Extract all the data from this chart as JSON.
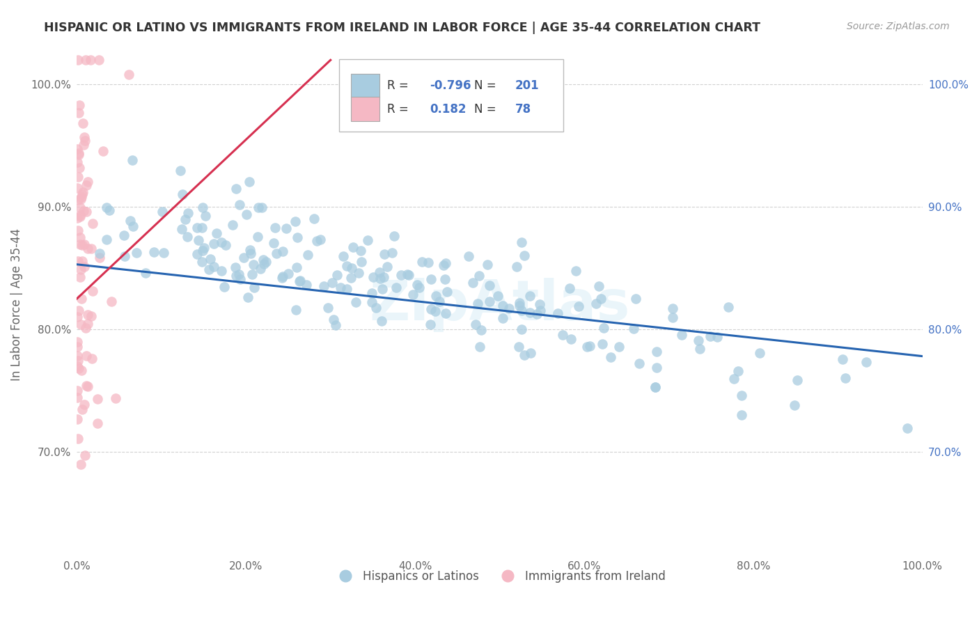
{
  "title": "HISPANIC OR LATINO VS IMMIGRANTS FROM IRELAND IN LABOR FORCE | AGE 35-44 CORRELATION CHART",
  "source": "Source: ZipAtlas.com",
  "ylabel": "In Labor Force | Age 35-44",
  "xlim": [
    0.0,
    1.0
  ],
  "ylim": [
    0.615,
    1.025
  ],
  "yticks": [
    0.7,
    0.8,
    0.9,
    1.0
  ],
  "ytick_labels": [
    "70.0%",
    "80.0%",
    "90.0%",
    "100.0%"
  ],
  "xticks": [
    0.0,
    0.2,
    0.4,
    0.6,
    0.8,
    1.0
  ],
  "xtick_labels": [
    "0.0%",
    "20.0%",
    "40.0%",
    "60.0%",
    "80.0%",
    "100.0%"
  ],
  "blue_R": -0.796,
  "blue_N": 201,
  "pink_R": 0.182,
  "pink_N": 78,
  "blue_color": "#a8cce0",
  "pink_color": "#f5b8c4",
  "blue_line_color": "#2563b0",
  "pink_line_color": "#d63050",
  "watermark": "ZipAtlas",
  "title_color": "#333333",
  "axis_label_color": "#666666",
  "tick_color": "#666666",
  "right_tick_color": "#4472c4",
  "grid_color": "#cccccc",
  "background_color": "#ffffff",
  "blue_trend_x": [
    0.0,
    1.0
  ],
  "blue_trend_y": [
    0.853,
    0.778
  ],
  "pink_trend_x": [
    0.0,
    0.3
  ],
  "pink_trend_y": [
    0.825,
    1.02
  ],
  "blue_seed": 42,
  "pink_seed": 99
}
